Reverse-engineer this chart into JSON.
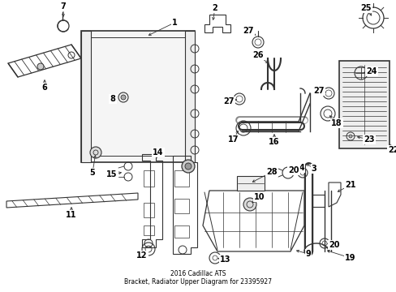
{
  "title": "2016 Cadillac ATS\nBracket, Radiator Upper Diagram for 23395927",
  "bg": "#ffffff",
  "lc": "#333333",
  "fig_w": 4.89,
  "fig_h": 3.6,
  "dpi": 100
}
